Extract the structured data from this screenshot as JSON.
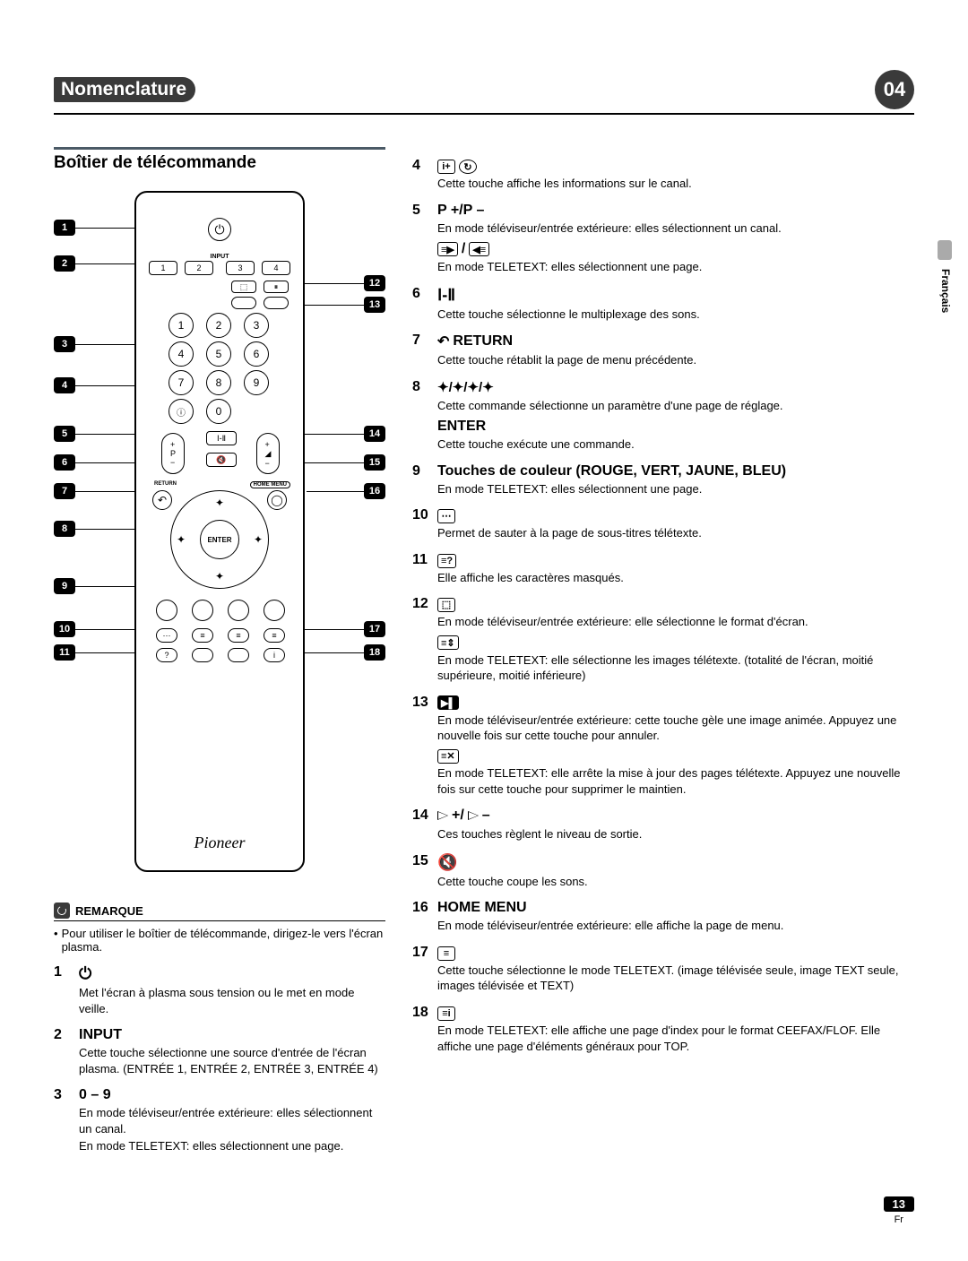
{
  "header": {
    "chapter_title": "Nomenclature",
    "chapter_number": "04"
  },
  "section": {
    "title": "Boîtier de télécommande"
  },
  "remote": {
    "brand": "Pioneer",
    "input_label": "INPUT",
    "input_buttons": [
      "1",
      "2",
      "3",
      "4"
    ],
    "num_buttons": [
      "1",
      "2",
      "3",
      "4",
      "5",
      "6",
      "7",
      "8",
      "9",
      "0"
    ],
    "return_label": "RETURN",
    "home_menu_label": "HOME MENU",
    "enter_label": "ENTER"
  },
  "callouts_left": [
    "1",
    "2",
    "3",
    "4",
    "5",
    "6",
    "7",
    "8",
    "9",
    "10",
    "11"
  ],
  "callouts_right": [
    "12",
    "13",
    "14",
    "15",
    "16",
    "17",
    "18"
  ],
  "note": {
    "title": "REMARQUE",
    "body": "Pour utiliser le boîtier de télécommande, dirigez-le vers l'écran plasma."
  },
  "items_left": [
    {
      "num": "1",
      "label": "",
      "icon": "power",
      "desc": "Met l'écran à plasma sous tension ou le met en mode veille."
    },
    {
      "num": "2",
      "label": "INPUT",
      "desc": "Cette touche sélectionne une source d'entrée de l'écran plasma. (ENTRÉE 1, ENTRÉE 2, ENTRÉE 3, ENTRÉE 4)"
    },
    {
      "num": "3",
      "label": "0 – 9",
      "desc": "En mode téléviseur/entrée extérieure: elles sélectionnent un canal.",
      "desc2": "En mode TELETEXT: elles sélectionnent une page."
    }
  ],
  "items_right": [
    {
      "num": "4",
      "label": "",
      "icon": "info-clock",
      "desc": "Cette touche affiche les informations sur le canal."
    },
    {
      "num": "5",
      "label": "P +/P –",
      "desc": "En mode téléviseur/entrée extérieure: elles sélectionnent un canal.",
      "sub_icon": "page-arrows",
      "desc2": "En mode TELETEXT: elles sélectionnent une page."
    },
    {
      "num": "6",
      "label": "",
      "icon": "i-ii",
      "desc": "Cette touche sélectionne le multiplexage des sons."
    },
    {
      "num": "7",
      "label": "RETURN",
      "icon": "return",
      "desc": "Cette touche rétablit la page de menu précédente."
    },
    {
      "num": "8",
      "label": "",
      "icon": "arrows4",
      "desc": "Cette commande sélectionne un paramètre d'une page de réglage.",
      "sub_label": "ENTER",
      "desc2": "Cette touche exécute une commande."
    },
    {
      "num": "9",
      "label": "Touches de couleur (ROUGE, VERT, JAUNE, BLEU)",
      "desc": "En mode TELETEXT: elles sélectionnent une page."
    },
    {
      "num": "10",
      "label": "",
      "icon": "subtitle",
      "desc": "Permet de sauter à la page de sous-titres télétexte."
    },
    {
      "num": "11",
      "label": "",
      "icon": "reveal",
      "desc": "Elle affiche les caractères masqués."
    },
    {
      "num": "12",
      "label": "",
      "icon": "size",
      "desc": "En mode téléviseur/entrée extérieure: elle sélectionne le format d'écran.",
      "sub_icon": "expand",
      "desc2": "En mode TELETEXT: elle sélectionne les images télétexte. (totalité de l'écran, moitié supérieure, moitié inférieure)"
    },
    {
      "num": "13",
      "label": "",
      "icon": "freeze",
      "desc": "En mode téléviseur/entrée extérieure: cette touche gèle une image animée. Appuyez une nouvelle fois sur cette touche pour annuler.",
      "sub_icon": "hold",
      "desc2": "En mode TELETEXT: elle arrête la mise à jour des pages télétexte. Appuyez une nouvelle fois sur cette touche pour supprimer le maintien."
    },
    {
      "num": "14",
      "label": "",
      "icon": "volume",
      "desc": "Ces touches règlent le niveau de sortie."
    },
    {
      "num": "15",
      "label": "",
      "icon": "mute",
      "desc": "Cette touche coupe les sons."
    },
    {
      "num": "16",
      "label": "HOME MENU",
      "desc": "En mode téléviseur/entrée extérieure: elle affiche la page de menu."
    },
    {
      "num": "17",
      "label": "",
      "icon": "teletext",
      "desc": "Cette touche sélectionne le mode TELETEXT. (image télévisée seule, image TEXT seule, images télévisée et TEXT)"
    },
    {
      "num": "18",
      "label": "",
      "icon": "index",
      "desc": "En mode TELETEXT: elle affiche une page d'index pour le format CEEFAX/FLOF. Elle affiche une page d'éléments généraux pour TOP."
    }
  ],
  "side": {
    "lang": "Français"
  },
  "footer": {
    "page": "13",
    "lang": "Fr"
  }
}
